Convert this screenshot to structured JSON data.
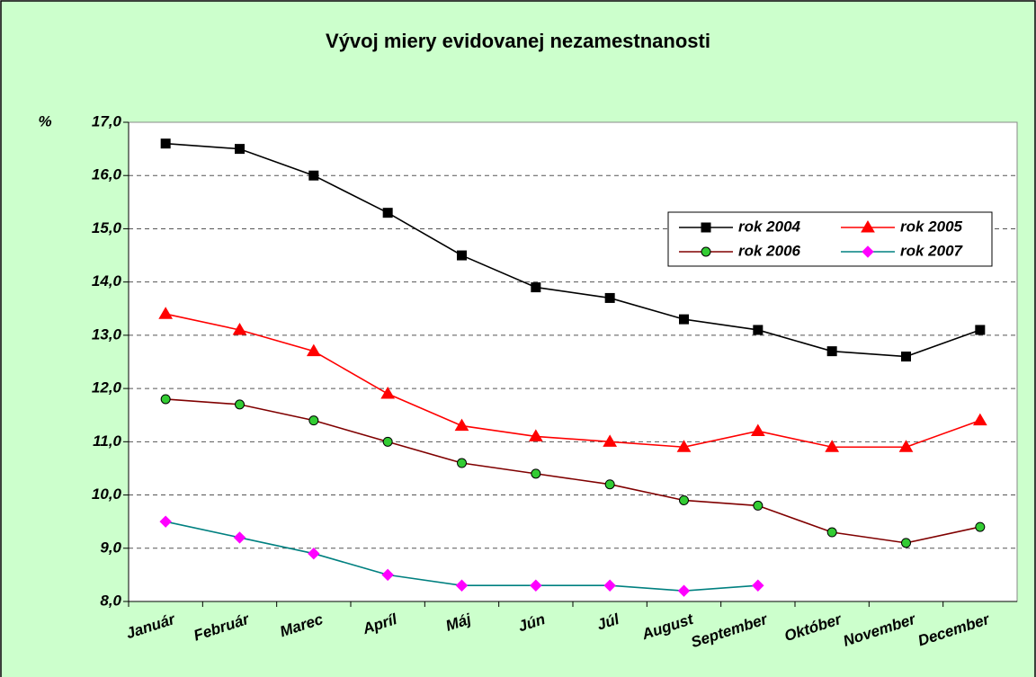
{
  "chart_data": {
    "type": "line",
    "title": "Vývoj miery evidovanej nezamestnanosti",
    "ylabel": "%",
    "categories": [
      "Január",
      "Február",
      "Marec",
      "Apríl",
      "Máj",
      "Jún",
      "Júl",
      "August",
      "September",
      "Október",
      "November",
      "December"
    ],
    "series": [
      {
        "name": "rok 2004",
        "color": "#000000",
        "marker": "square",
        "marker_color": "#000000",
        "values": [
          16.6,
          16.5,
          16.0,
          15.3,
          14.5,
          13.9,
          13.7,
          13.3,
          13.1,
          12.7,
          12.6,
          13.1
        ]
      },
      {
        "name": "rok 2005",
        "color": "#ff0000",
        "marker": "triangle",
        "marker_color": "#ff0000",
        "values": [
          13.4,
          13.1,
          12.7,
          11.9,
          11.3,
          11.1,
          11.0,
          10.9,
          11.2,
          10.9,
          10.9,
          11.4
        ]
      },
      {
        "name": "rok 2006",
        "color": "#800000",
        "marker": "circle",
        "marker_color": "#33cc33",
        "values": [
          11.8,
          11.7,
          11.4,
          11.0,
          10.6,
          10.4,
          10.2,
          9.9,
          9.8,
          9.3,
          9.1,
          9.4
        ]
      },
      {
        "name": "rok 2007",
        "color": "#008080",
        "marker": "diamond",
        "marker_color": "#ff00ff",
        "values": [
          9.5,
          9.2,
          8.9,
          8.5,
          8.3,
          8.3,
          8.3,
          8.2,
          8.3,
          null,
          null,
          null
        ]
      }
    ],
    "ylim": [
      8,
      17
    ],
    "yticks": [
      {
        "value": 8,
        "label": "8,0"
      },
      {
        "value": 9,
        "label": "9,0"
      },
      {
        "value": 10,
        "label": "10,0"
      },
      {
        "value": 11,
        "label": "11,0"
      },
      {
        "value": 12,
        "label": "12,0"
      },
      {
        "value": 13,
        "label": "13,0"
      },
      {
        "value": 14,
        "label": "14,0"
      },
      {
        "value": 15,
        "label": "15,0"
      },
      {
        "value": 16,
        "label": "16,0"
      },
      {
        "value": 17,
        "label": "17,0"
      }
    ],
    "grid": true,
    "legend": "upper right"
  }
}
